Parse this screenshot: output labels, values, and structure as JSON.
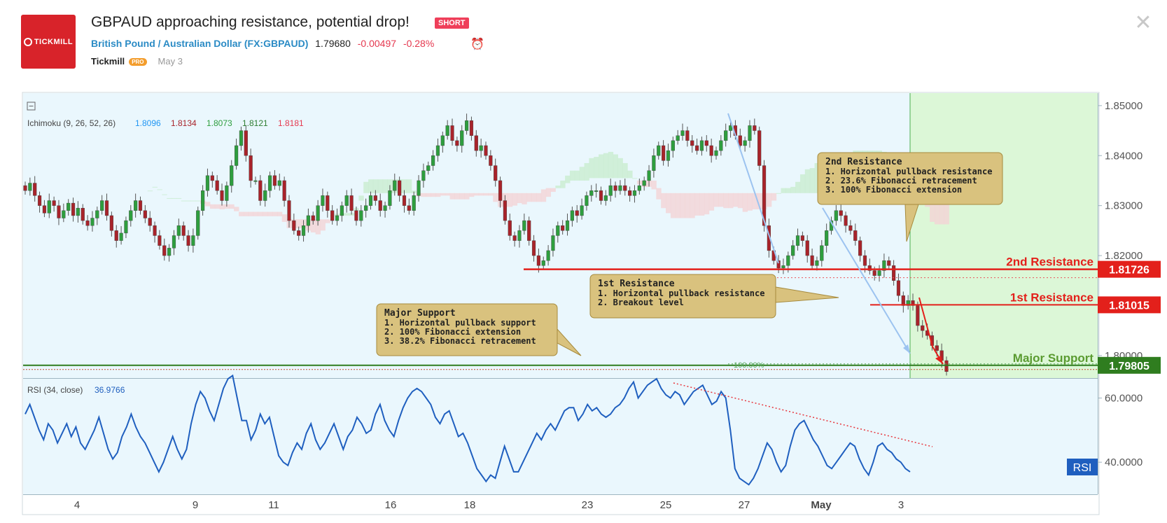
{
  "header": {
    "logo_text": "TICKMILL",
    "title": "GBPAUD approaching resistance, potential drop!",
    "badge": "SHORT",
    "symbol_name": "British Pound / Australian Dollar",
    "symbol_code": "FX:GBPAUD",
    "price": "1.79680",
    "change": "-0.00497",
    "change_pct": "-0.28%",
    "author": "Tickmill",
    "author_badge": "PRO",
    "date": "May 3",
    "alarm_icon": "alarm-clock-icon",
    "close_icon": "close-icon"
  },
  "colors": {
    "bull": "#2e9e3e",
    "bear": "#a8232a",
    "resistance": "#e3201b",
    "support": "#2f7d1f",
    "rsi": "#1f5fbf",
    "pane_bg": "#eaf7fd",
    "future_bg": "#dcf7d7"
  },
  "chart_data": [
    {
      "type": "candlestick",
      "symbol": "GBPAUD",
      "indicator": {
        "name": "Ichimoku (9, 26, 52, 26)",
        "values": [
          "1.8096",
          "1.8134",
          "1.8073",
          "1.8121",
          "1.8181"
        ],
        "colors": [
          "#2196f3",
          "#a8232a",
          "#2e9e3e",
          "#2e7d32",
          "#e5384f"
        ]
      },
      "ylim": [
        1.7955,
        1.8525
      ],
      "y_ticks": [
        "1.85000",
        "1.84000",
        "1.83000",
        "1.82000",
        "1.80000"
      ],
      "x_ticks": [
        "4",
        "9",
        "11",
        "16",
        "18",
        "23",
        "25",
        "27",
        "May",
        "3"
      ],
      "levels": [
        {
          "name": "2nd Resistance",
          "value": "1.81726",
          "y": 1.81726
        },
        {
          "name": "1st Resistance",
          "value": "1.81015",
          "y": 1.81015
        },
        {
          "name": "Major Support",
          "value": "1.79805",
          "y": 1.79805
        }
      ],
      "fib_labels": [
        "23.60%",
        "100.00%"
      ],
      "annotations": [
        {
          "title": "2nd Resistance",
          "lines": [
            "1. Horizontal pullback resistance",
            "2. 23.6% Fibonacci retracement",
            "3. 100% Fibonacci extension"
          ]
        },
        {
          "title": "1st Resistance",
          "lines": [
            "1. Horizontal pullback resistance",
            "2. Breakout level"
          ]
        },
        {
          "title": "Major Support",
          "lines": [
            "1. Horizontal pullback support",
            "2. 100% Fibonacci extension",
            "3. 38.2% Fibonacci retracement"
          ]
        }
      ],
      "approx_closes": [
        1.833,
        1.8345,
        1.832,
        1.83,
        1.8285,
        1.831,
        1.83,
        1.8275,
        1.829,
        1.8305,
        1.828,
        1.8295,
        1.827,
        1.826,
        1.8275,
        1.829,
        1.831,
        1.828,
        1.825,
        1.823,
        1.8245,
        1.827,
        1.829,
        1.831,
        1.829,
        1.8275,
        1.826,
        1.824,
        1.822,
        1.82,
        1.8215,
        1.824,
        1.826,
        1.824,
        1.822,
        1.824,
        1.829,
        1.833,
        1.836,
        1.835,
        1.833,
        1.831,
        1.834,
        1.838,
        1.842,
        1.845,
        1.84,
        1.835,
        1.835,
        1.831,
        1.833,
        1.836,
        1.834,
        1.835,
        1.831,
        1.827,
        1.825,
        1.824,
        1.826,
        1.828,
        1.827,
        1.83,
        1.832,
        1.829,
        1.827,
        1.828,
        1.83,
        1.832,
        1.829,
        1.827,
        1.829,
        1.83,
        1.832,
        1.831,
        1.829,
        1.83,
        1.833,
        1.835,
        1.832,
        1.83,
        1.829,
        1.832,
        1.835,
        1.837,
        1.838,
        1.84,
        1.842,
        1.844,
        1.846,
        1.843,
        1.842,
        1.845,
        1.847,
        1.844,
        1.841,
        1.842,
        1.84,
        1.838,
        1.835,
        1.831,
        1.827,
        1.824,
        1.823,
        1.825,
        1.827,
        1.823,
        1.82,
        1.818,
        1.819,
        1.821,
        1.824,
        1.826,
        1.825,
        1.827,
        1.829,
        1.828,
        1.83,
        1.832,
        1.833,
        1.833,
        1.831,
        1.832,
        1.834,
        1.833,
        1.834,
        1.833,
        1.832,
        1.833,
        1.834,
        1.835,
        1.837,
        1.84,
        1.842,
        1.839,
        1.841,
        1.843,
        1.844,
        1.845,
        1.843,
        1.842,
        1.841,
        1.843,
        1.842,
        1.84,
        1.841,
        1.843,
        1.845,
        1.846,
        1.844,
        1.842,
        1.843,
        1.846,
        1.845,
        1.838,
        1.826,
        1.821,
        1.819,
        1.8175,
        1.818,
        1.82,
        1.822,
        1.824,
        1.823,
        1.82,
        1.818,
        1.819,
        1.822,
        1.825,
        1.827,
        1.829,
        1.828,
        1.826,
        1.825,
        1.823,
        1.82,
        1.818,
        1.817,
        1.816,
        1.817,
        1.819,
        1.818,
        1.815,
        1.812,
        1.81,
        1.811,
        1.81,
        1.806,
        1.805,
        1.804,
        1.802,
        1.801,
        1.799,
        1.7968
      ]
    },
    {
      "type": "line",
      "name": "RSI (34, close)",
      "value": "36.9766",
      "ylim": [
        30,
        66
      ],
      "y_ticks": [
        "60.0000",
        "40.0000"
      ],
      "tag": "RSI",
      "approx_values": [
        55,
        58,
        54,
        50,
        47,
        52,
        50,
        46,
        49,
        52,
        48,
        51,
        46,
        44,
        47,
        50,
        54,
        49,
        44,
        41,
        43,
        48,
        51,
        55,
        51,
        48,
        46,
        43,
        40,
        37,
        40,
        44,
        48,
        44,
        41,
        44,
        52,
        58,
        62,
        60,
        56,
        53,
        58,
        63,
        66,
        67,
        60,
        53,
        53,
        47,
        50,
        55,
        52,
        54,
        48,
        42,
        40,
        39,
        43,
        46,
        44,
        49,
        52,
        47,
        44,
        46,
        49,
        52,
        48,
        44,
        48,
        50,
        54,
        52,
        49,
        50,
        55,
        58,
        53,
        50,
        48,
        53,
        57,
        60,
        62,
        63,
        62,
        60,
        58,
        54,
        52,
        55,
        56,
        52,
        48,
        49,
        46,
        42,
        38,
        36,
        34,
        36,
        35,
        40,
        45,
        41,
        37,
        37,
        40,
        43,
        46,
        49,
        47,
        50,
        52,
        50,
        53,
        56,
        57,
        57,
        53,
        55,
        58,
        56,
        57,
        55,
        54,
        55,
        57,
        58,
        60,
        63,
        65,
        60,
        62,
        64,
        65,
        66,
        63,
        61,
        60,
        62,
        61,
        58,
        60,
        62,
        63,
        64,
        61,
        58,
        59,
        62,
        60,
        50,
        38,
        35,
        34,
        33,
        35,
        38,
        42,
        46,
        44,
        40,
        37,
        39,
        45,
        50,
        52,
        53,
        50,
        47,
        45,
        42,
        39,
        38,
        40,
        42,
        44,
        46,
        45,
        41,
        38,
        36,
        40,
        45,
        46,
        44,
        43,
        41,
        40,
        38,
        37
      ]
    }
  ]
}
